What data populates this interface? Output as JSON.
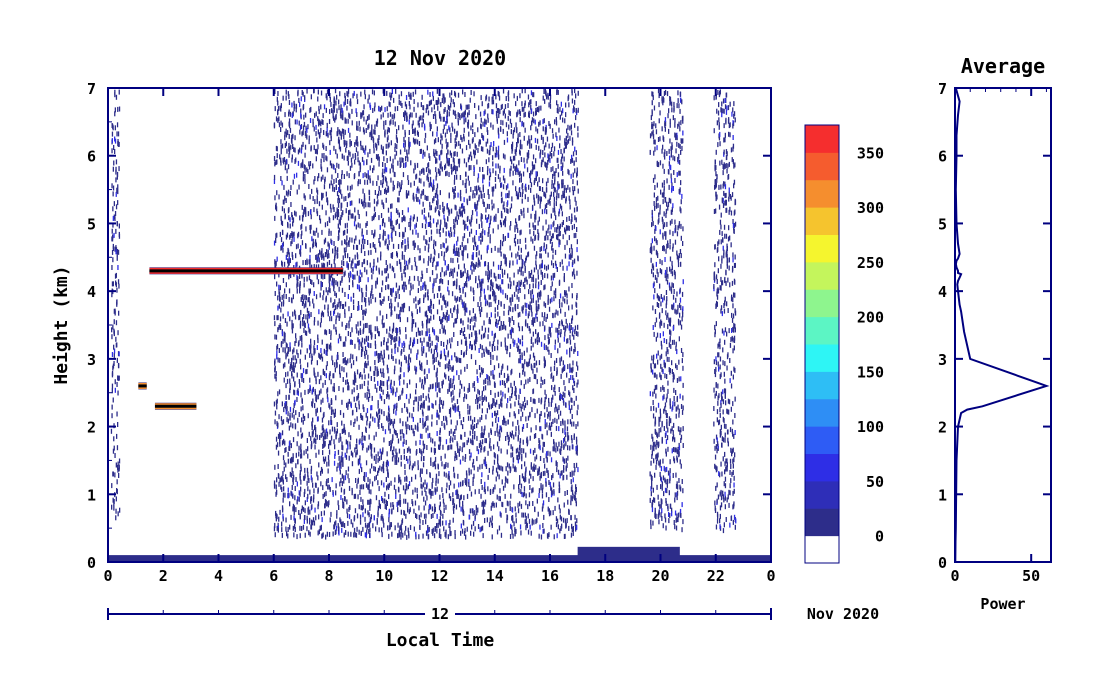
{
  "chart_data": [
    {
      "type": "heatmap",
      "title": "12 Nov 2020",
      "xlabel": "Local Time",
      "ylabel": "Height (km)",
      "xlim": [
        0,
        24
      ],
      "ylim": [
        0,
        7
      ],
      "x_ticks": [
        "0",
        "2",
        "4",
        "6",
        "8",
        "10",
        "12",
        "14",
        "16",
        "18",
        "20",
        "22",
        "0"
      ],
      "y_ticks": [
        "0",
        "1",
        "2",
        "3",
        "4",
        "5",
        "6",
        "7"
      ],
      "date_axis": {
        "day_label": "12",
        "month_label": "Nov 2020"
      },
      "layers": [
        {
          "name": "melting layer",
          "x_start": 1.5,
          "x_end": 8.5,
          "height": 4.3,
          "value": 370
        },
        {
          "name": "lower layer",
          "x_start": 1.7,
          "x_end": 3.2,
          "height": 2.3,
          "value": 300
        },
        {
          "name": "short layer",
          "x_start": 1.1,
          "x_end": 1.4,
          "height": 2.6,
          "value": 300
        },
        {
          "name": "near-surface",
          "x_start": 0,
          "x_end": 24,
          "height": 0.05,
          "value": 20
        },
        {
          "name": "surface rain",
          "x_start": 17,
          "x_end": 20.7,
          "height": 0.15,
          "value": 60
        }
      ],
      "noise_regions": [
        {
          "x_start": 6,
          "x_end": 17,
          "y_start": 0.4,
          "y_end": 7
        },
        {
          "x_start": 19.6,
          "x_end": 20.8,
          "y_start": 0.5,
          "y_end": 7
        },
        {
          "x_start": 21.9,
          "x_end": 22.7,
          "y_start": 0.5,
          "y_end": 7
        },
        {
          "x_start": 0.1,
          "x_end": 0.4,
          "y_start": 0.6,
          "y_end": 7
        }
      ],
      "colorbar": {
        "ticks": [
          "0",
          "50",
          "100",
          "150",
          "200",
          "250",
          "300",
          "350"
        ],
        "tick_values": [
          0,
          50,
          100,
          150,
          200,
          250,
          300,
          350
        ],
        "range": [
          -25,
          375
        ],
        "colors": [
          "#ffffff",
          "#2d2d8a",
          "#2e2eb8",
          "#2e2ee6",
          "#2e5cf5",
          "#2e8ef5",
          "#2ebef5",
          "#2ef5f5",
          "#5cf5c4",
          "#8ef58e",
          "#c4f55c",
          "#f5f52e",
          "#f5c42e",
          "#f58e2e",
          "#f55c2e",
          "#f52e2e"
        ]
      }
    },
    {
      "type": "line",
      "title": "Average",
      "xlabel": "Power",
      "ylabel": "",
      "xlim": [
        0,
        63
      ],
      "ylim": [
        0,
        7
      ],
      "x_ticks": [
        "0",
        "50"
      ],
      "y_ticks": [
        "0",
        "1",
        "2",
        "3",
        "4",
        "5",
        "6",
        "7"
      ],
      "line_color": "#000080",
      "profile": {
        "x": [
          0.5,
          3,
          2,
          1,
          1,
          0.5,
          1,
          2,
          3,
          2,
          1,
          0.6,
          1,
          2,
          2,
          4,
          3,
          2,
          1.5,
          2,
          3,
          4,
          6,
          10,
          60,
          18,
          8,
          4,
          2,
          1,
          0.5,
          0.3,
          0.2
        ],
        "y": [
          7,
          6.8,
          6.6,
          6.3,
          6.0,
          5.5,
          5.0,
          4.7,
          4.55,
          4.48,
          4.45,
          4.4,
          4.35,
          4.3,
          4.27,
          4.25,
          4.2,
          4.15,
          4.1,
          4.0,
          3.8,
          3.7,
          3.4,
          3.0,
          2.6,
          2.3,
          2.25,
          2.2,
          2.0,
          1.5,
          0.5,
          0.3,
          0.0
        ]
      }
    }
  ],
  "colors": {
    "frame": "#000080",
    "accent": "#000000"
  }
}
